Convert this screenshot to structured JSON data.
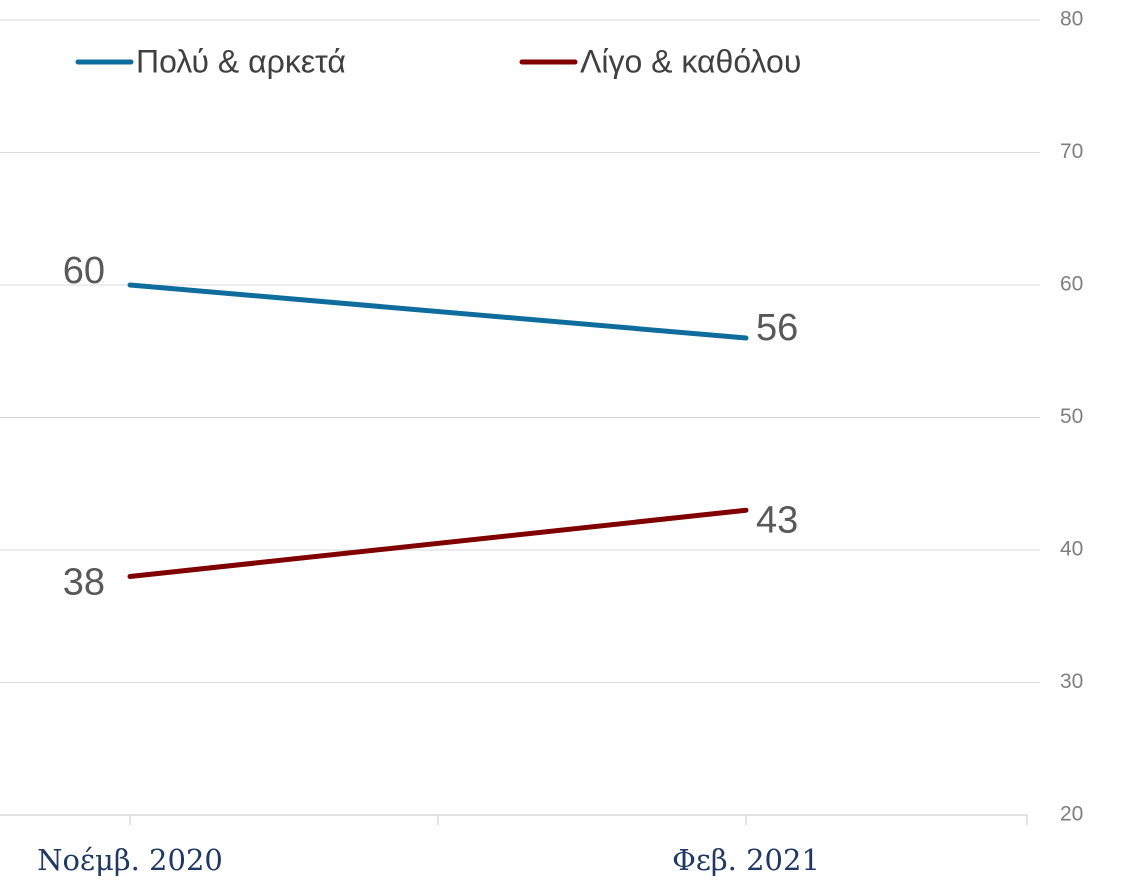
{
  "chart_data": {
    "type": "line",
    "categories": [
      "Νοέμβ. 2020",
      "Φεβ. 2021"
    ],
    "series": [
      {
        "name": "Πολύ & αρκετά",
        "color": "#0f6d9e",
        "values": [
          60,
          56
        ]
      },
      {
        "name": "Λίγο & καθόλου",
        "color": "#800000",
        "values": [
          38,
          43
        ]
      }
    ],
    "ylim": [
      20,
      80
    ],
    "yticks": [
      20,
      30,
      40,
      50,
      60,
      70,
      80
    ],
    "grid": true,
    "legend": "top"
  }
}
